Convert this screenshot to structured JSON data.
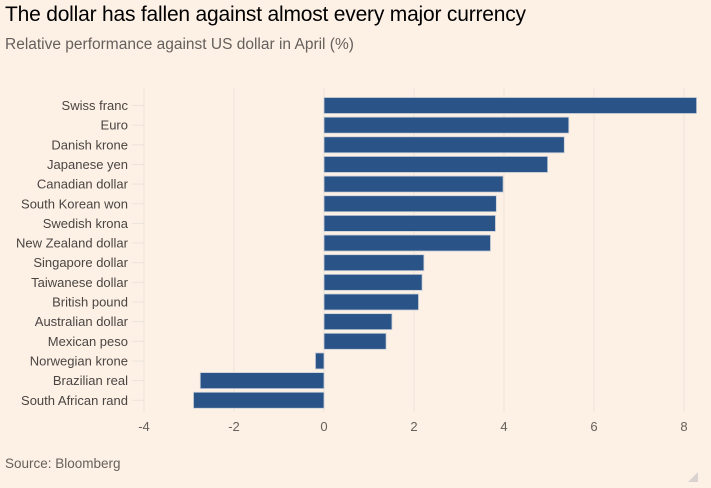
{
  "header": {
    "title": "The dollar has fallen against almost every major currency",
    "subtitle": "Relative performance against US dollar in April (%)"
  },
  "footer": {
    "source": "Source: Bloomberg"
  },
  "colors": {
    "background": "#fdf1e6",
    "bar": "#2a5388",
    "bar_stroke": "#c9cfd8",
    "gridline": "#ebe3da",
    "text": "#66605c"
  },
  "chart_data": {
    "type": "bar",
    "orientation": "horizontal",
    "title": "The dollar has fallen against almost every major currency",
    "subtitle": "Relative performance against US dollar in April (%)",
    "xlabel": "",
    "ylabel": "",
    "xlim": [
      -4,
      8.3
    ],
    "xticks": [
      -4,
      -2,
      0,
      2,
      4,
      6,
      8
    ],
    "xtick_labels": [
      "-4",
      "-2",
      "0",
      "2",
      "4",
      "6",
      "8"
    ],
    "grid": true,
    "legend": "none",
    "categories": [
      "Swiss franc",
      "Euro",
      "Danish krone",
      "Japanese yen",
      "Canadian dollar",
      "South Korean won",
      "Swedish krona",
      "New Zealand dollar",
      "Singapore dollar",
      "Taiwanese dollar",
      "British pound",
      "Australian dollar",
      "Mexican peso",
      "Norwegian krone",
      "Brazilian real",
      "South African rand"
    ],
    "values": [
      8.28,
      5.44,
      5.34,
      4.97,
      3.98,
      3.83,
      3.81,
      3.7,
      2.22,
      2.18,
      2.1,
      1.51,
      1.38,
      -0.19,
      -2.75,
      -2.9
    ],
    "source": "Source: Bloomberg"
  }
}
